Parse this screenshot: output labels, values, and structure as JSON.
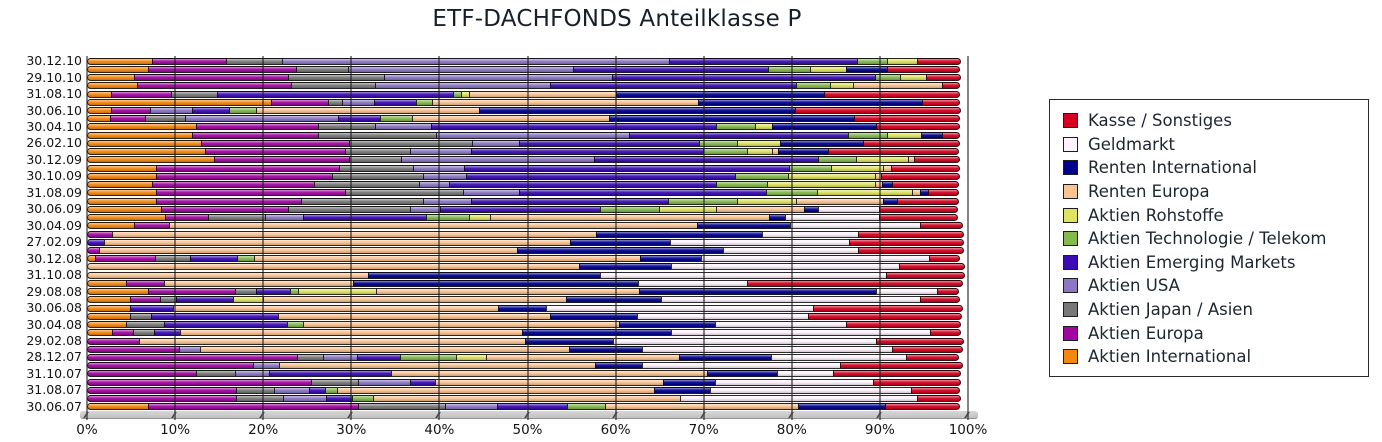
{
  "title": "ETF-DACHFONDS Anteilklasse P",
  "chart_data": {
    "type": "bar",
    "orientation": "horizontal",
    "stacked": true,
    "unit": "%",
    "xlim": [
      0,
      100
    ],
    "x_ticks": [
      "0%",
      "10%",
      "20%",
      "30%",
      "40%",
      "50%",
      "60%",
      "70%",
      "80%",
      "90%",
      "100%"
    ],
    "grid": "vertical",
    "legend_position": "right",
    "legend": [
      "Kasse / Sonstiges",
      "Geldmarkt",
      "Renten International",
      "Renten Europa",
      "Aktien Rohstoffe",
      "Aktien Technologie / Telekom",
      "Aktien Emerging Markets",
      "Aktien USA",
      "Aktien Japan / Asien",
      "Aktien Europa",
      "Aktien International"
    ],
    "series_order": [
      "Aktien International",
      "Aktien Europa",
      "Aktien Japan / Asien",
      "Aktien USA",
      "Aktien Emerging Markets",
      "Aktien Technologie / Telekom",
      "Aktien Rohstoffe",
      "Renten Europa",
      "Renten International",
      "Geldmarkt",
      "Kasse / Sonstiges"
    ],
    "colors": {
      "Kasse / Sonstiges": "#D60020",
      "Geldmarkt": "#FDF2FC",
      "Renten International": "#00008F",
      "Renten Europa": "#FAC392",
      "Aktien Rohstoffe": "#E0E35F",
      "Aktien Technologie / Telekom": "#84B94E",
      "Aktien Emerging Markets": "#3A0CB4",
      "Aktien USA": "#8B77C4",
      "Aktien Japan / Asien": "#787878",
      "Aktien Europa": "#A206A2",
      "Aktien International": "#F5870F"
    },
    "rows": [
      {
        "label": "30.12.10",
        "values": [
          7.5,
          8.5,
          6.5,
          44,
          21.5,
          3.5,
          3.5,
          0,
          0,
          0,
          5
        ]
      },
      {
        "label": "",
        "values": [
          7,
          17,
          6,
          25.6,
          22.3,
          4.8,
          4.2,
          0,
          4.8,
          0,
          8.3
        ]
      },
      {
        "label": "29.10.10",
        "values": [
          5.5,
          17.5,
          11,
          26,
          30,
          3,
          3,
          0,
          0,
          0,
          4
        ]
      },
      {
        "label": "",
        "values": [
          5.8,
          17.6,
          9.6,
          20,
          28,
          4,
          2.7,
          10.3,
          0,
          0,
          2
        ]
      },
      {
        "label": "31.08.10",
        "values": [
          2.8,
          7,
          5.3,
          0,
          26.9,
          1,
          1,
          16.8,
          23.8,
          0,
          15.4
        ]
      },
      {
        "label": "",
        "values": [
          21,
          6.6,
          1.7,
          3.7,
          4.9,
          1.9,
          0,
          30.4,
          25.5,
          0,
          4.3
        ]
      },
      {
        "label": "30.06.10",
        "values": [
          2.8,
          4.6,
          0,
          4.9,
          4.3,
          3.2,
          0,
          25.4,
          36,
          0,
          18.8
        ]
      },
      {
        "label": "",
        "values": [
          2.7,
          4.1,
          4.7,
          17.4,
          4.9,
          3.8,
          0,
          22.4,
          28,
          0,
          12
        ]
      },
      {
        "label": "30.04.10",
        "values": [
          12.5,
          14,
          6.5,
          6.5,
          32.5,
          4.5,
          2,
          0,
          12,
          0,
          9.5
        ]
      },
      {
        "label": "",
        "values": [
          12,
          14.5,
          13.5,
          22,
          25,
          4.5,
          4,
          0,
          2.5,
          0,
          2
        ]
      },
      {
        "label": "26.02.10",
        "values": [
          13,
          17,
          14,
          5.5,
          20.5,
          4.5,
          5,
          0,
          9.5,
          0,
          11
        ]
      },
      {
        "label": "",
        "values": [
          13.5,
          16,
          7.5,
          7,
          26.5,
          5.1,
          2.9,
          0.9,
          5.7,
          0,
          14.9
        ]
      },
      {
        "label": "30.12.09",
        "values": [
          14.5,
          15.5,
          6,
          22,
          25.6,
          4.4,
          6,
          0.8,
          0,
          0,
          5.2
        ]
      },
      {
        "label": "",
        "values": [
          8,
          20.8,
          8.5,
          6,
          36.9,
          4.9,
          6.1,
          1,
          0,
          0,
          7.8
        ]
      },
      {
        "label": "30.10.09",
        "values": [
          8,
          20,
          10.5,
          5,
          30.6,
          6.1,
          10,
          0.8,
          0,
          0,
          9
        ]
      },
      {
        "label": "",
        "values": [
          7.5,
          18.5,
          12,
          3.5,
          30.5,
          5.9,
          12.3,
          1,
          1.2,
          0,
          7.6
        ]
      },
      {
        "label": "31.08.09",
        "values": [
          8,
          21.5,
          13.5,
          6.5,
          28.2,
          5.9,
          10.8,
          1.1,
          1,
          0,
          3.5
        ]
      },
      {
        "label": "",
        "values": [
          8,
          16.5,
          14,
          5.5,
          22.5,
          8,
          6.8,
          10,
          1.7,
          0,
          7
        ]
      },
      {
        "label": "30.06.09",
        "values": [
          8.5,
          14.5,
          14,
          3.5,
          18.3,
          6.8,
          6.6,
          10.1,
          1.7,
          7,
          9
        ]
      },
      {
        "label": "",
        "values": [
          9,
          5,
          6.5,
          4.5,
          14,
          5,
          2.5,
          31.8,
          1.9,
          10.8,
          9
        ]
      },
      {
        "label": "30.04.09",
        "values": [
          5.5,
          4,
          0,
          0,
          0,
          0,
          0,
          60.1,
          10.6,
          14.9,
          4.9
        ]
      },
      {
        "label": "",
        "values": [
          0,
          3,
          0,
          0,
          0,
          0,
          0,
          55,
          19,
          11,
          12
        ]
      },
      {
        "label": "27.02.09",
        "values": [
          0,
          0,
          0,
          0,
          2,
          0,
          0,
          53,
          11.5,
          20.5,
          13
        ]
      },
      {
        "label": "",
        "values": [
          0,
          1.5,
          0,
          0,
          0,
          0,
          0,
          47.5,
          23.5,
          15.5,
          12
        ]
      },
      {
        "label": "30.12.08",
        "values": [
          1,
          7,
          4,
          0,
          5.5,
          2,
          0,
          44,
          7,
          26,
          3.5
        ]
      },
      {
        "label": "",
        "values": [
          0,
          0,
          0,
          0,
          0,
          0,
          0,
          56,
          10.5,
          26,
          7.5
        ]
      },
      {
        "label": "31.10.08",
        "values": [
          0,
          0,
          0,
          0,
          0,
          0,
          0,
          32,
          26.5,
          32.5,
          9
        ]
      },
      {
        "label": "",
        "values": [
          4.5,
          4.5,
          0,
          0,
          0,
          0,
          0,
          21.5,
          32.5,
          12.5,
          24.5
        ]
      },
      {
        "label": "29.08.08",
        "values": [
          7,
          10,
          2.5,
          0,
          4,
          1,
          9,
          30,
          27,
          7,
          2.5
        ]
      },
      {
        "label": "",
        "values": [
          5,
          3.5,
          2,
          0,
          6.5,
          0,
          3.5,
          34.5,
          11,
          29.5,
          4.5
        ]
      },
      {
        "label": "30.06.08",
        "values": [
          5,
          0,
          0,
          0,
          5,
          0,
          0,
          37,
          5.5,
          30.5,
          17
        ]
      },
      {
        "label": "",
        "values": [
          5,
          0,
          2.5,
          0,
          14.5,
          0,
          0,
          31,
          10,
          19.5,
          17.5
        ]
      },
      {
        "label": "30.04.08",
        "values": [
          4.5,
          0,
          4.5,
          0,
          14,
          2,
          0,
          36,
          11,
          15,
          13
        ]
      },
      {
        "label": "",
        "values": [
          3,
          2.5,
          2.5,
          0,
          3,
          0,
          0,
          39,
          17,
          29.5,
          3.5
        ]
      },
      {
        "label": "29.02.08",
        "values": [
          0,
          6,
          0,
          0,
          0,
          0,
          0,
          44,
          10,
          30,
          10
        ]
      },
      {
        "label": "",
        "values": [
          0,
          10.5,
          0,
          2.5,
          0,
          0,
          0,
          42,
          8.5,
          28.5,
          8
        ]
      },
      {
        "label": "28.12.07",
        "values": [
          0,
          24,
          3,
          4,
          5,
          6.5,
          3.5,
          22,
          10.5,
          15.5,
          6
        ]
      },
      {
        "label": "",
        "values": [
          0,
          19,
          0,
          3,
          0,
          0,
          0,
          36,
          5.5,
          22.5,
          14
        ]
      },
      {
        "label": "31.10.07",
        "values": [
          0,
          12.5,
          4.5,
          4,
          14,
          0,
          0,
          36,
          8,
          6.5,
          14.5
        ]
      },
      {
        "label": "",
        "values": [
          0,
          25.5,
          5.5,
          6,
          3,
          0,
          0,
          26,
          6,
          18,
          10
        ]
      },
      {
        "label": "31.08.07",
        "values": [
          0,
          17,
          4.5,
          4,
          2,
          1.5,
          0,
          36,
          6.5,
          23,
          5.5
        ]
      },
      {
        "label": "",
        "values": [
          0,
          17,
          5.5,
          5,
          3,
          2.5,
          0,
          35,
          0,
          27,
          5
        ]
      },
      {
        "label": "30.06.07",
        "values": [
          7,
          24,
          10,
          6,
          8,
          4.5,
          0,
          22,
          10,
          0,
          8.5
        ]
      }
    ]
  }
}
